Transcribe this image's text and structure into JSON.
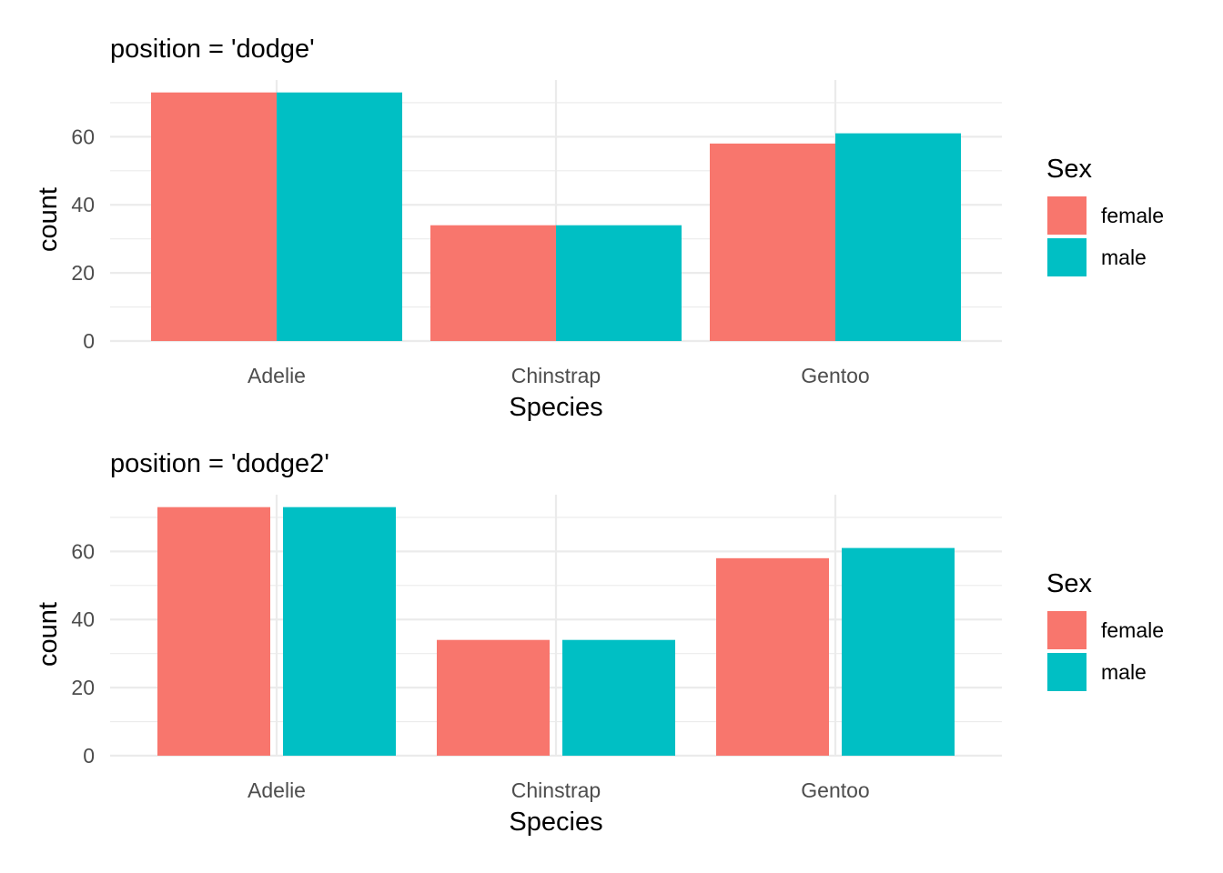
{
  "chart_data": [
    {
      "type": "bar",
      "title": "position = 'dodge'",
      "xlabel": "Species",
      "ylabel": "count",
      "categories": [
        "Adelie",
        "Chinstrap",
        "Gentoo"
      ],
      "series": [
        {
          "name": "female",
          "values": [
            73,
            34,
            58
          ],
          "color": "#F8766D"
        },
        {
          "name": "male",
          "values": [
            73,
            34,
            61
          ],
          "color": "#00BFC4"
        }
      ],
      "yticks": [
        0,
        20,
        40,
        60
      ],
      "ylim": [
        0,
        76.65
      ],
      "grid": true,
      "legend": {
        "title": "Sex",
        "placement": "right"
      },
      "position": "dodge"
    },
    {
      "type": "bar",
      "title": "position = 'dodge2'",
      "xlabel": "Species",
      "ylabel": "count",
      "categories": [
        "Adelie",
        "Chinstrap",
        "Gentoo"
      ],
      "series": [
        {
          "name": "female",
          "values": [
            73,
            34,
            58
          ],
          "color": "#F8766D"
        },
        {
          "name": "male",
          "values": [
            73,
            34,
            61
          ],
          "color": "#00BFC4"
        }
      ],
      "yticks": [
        0,
        20,
        40,
        60
      ],
      "ylim": [
        0,
        76.65
      ],
      "grid": true,
      "legend": {
        "title": "Sex",
        "placement": "right"
      },
      "position": "dodge2"
    }
  ]
}
